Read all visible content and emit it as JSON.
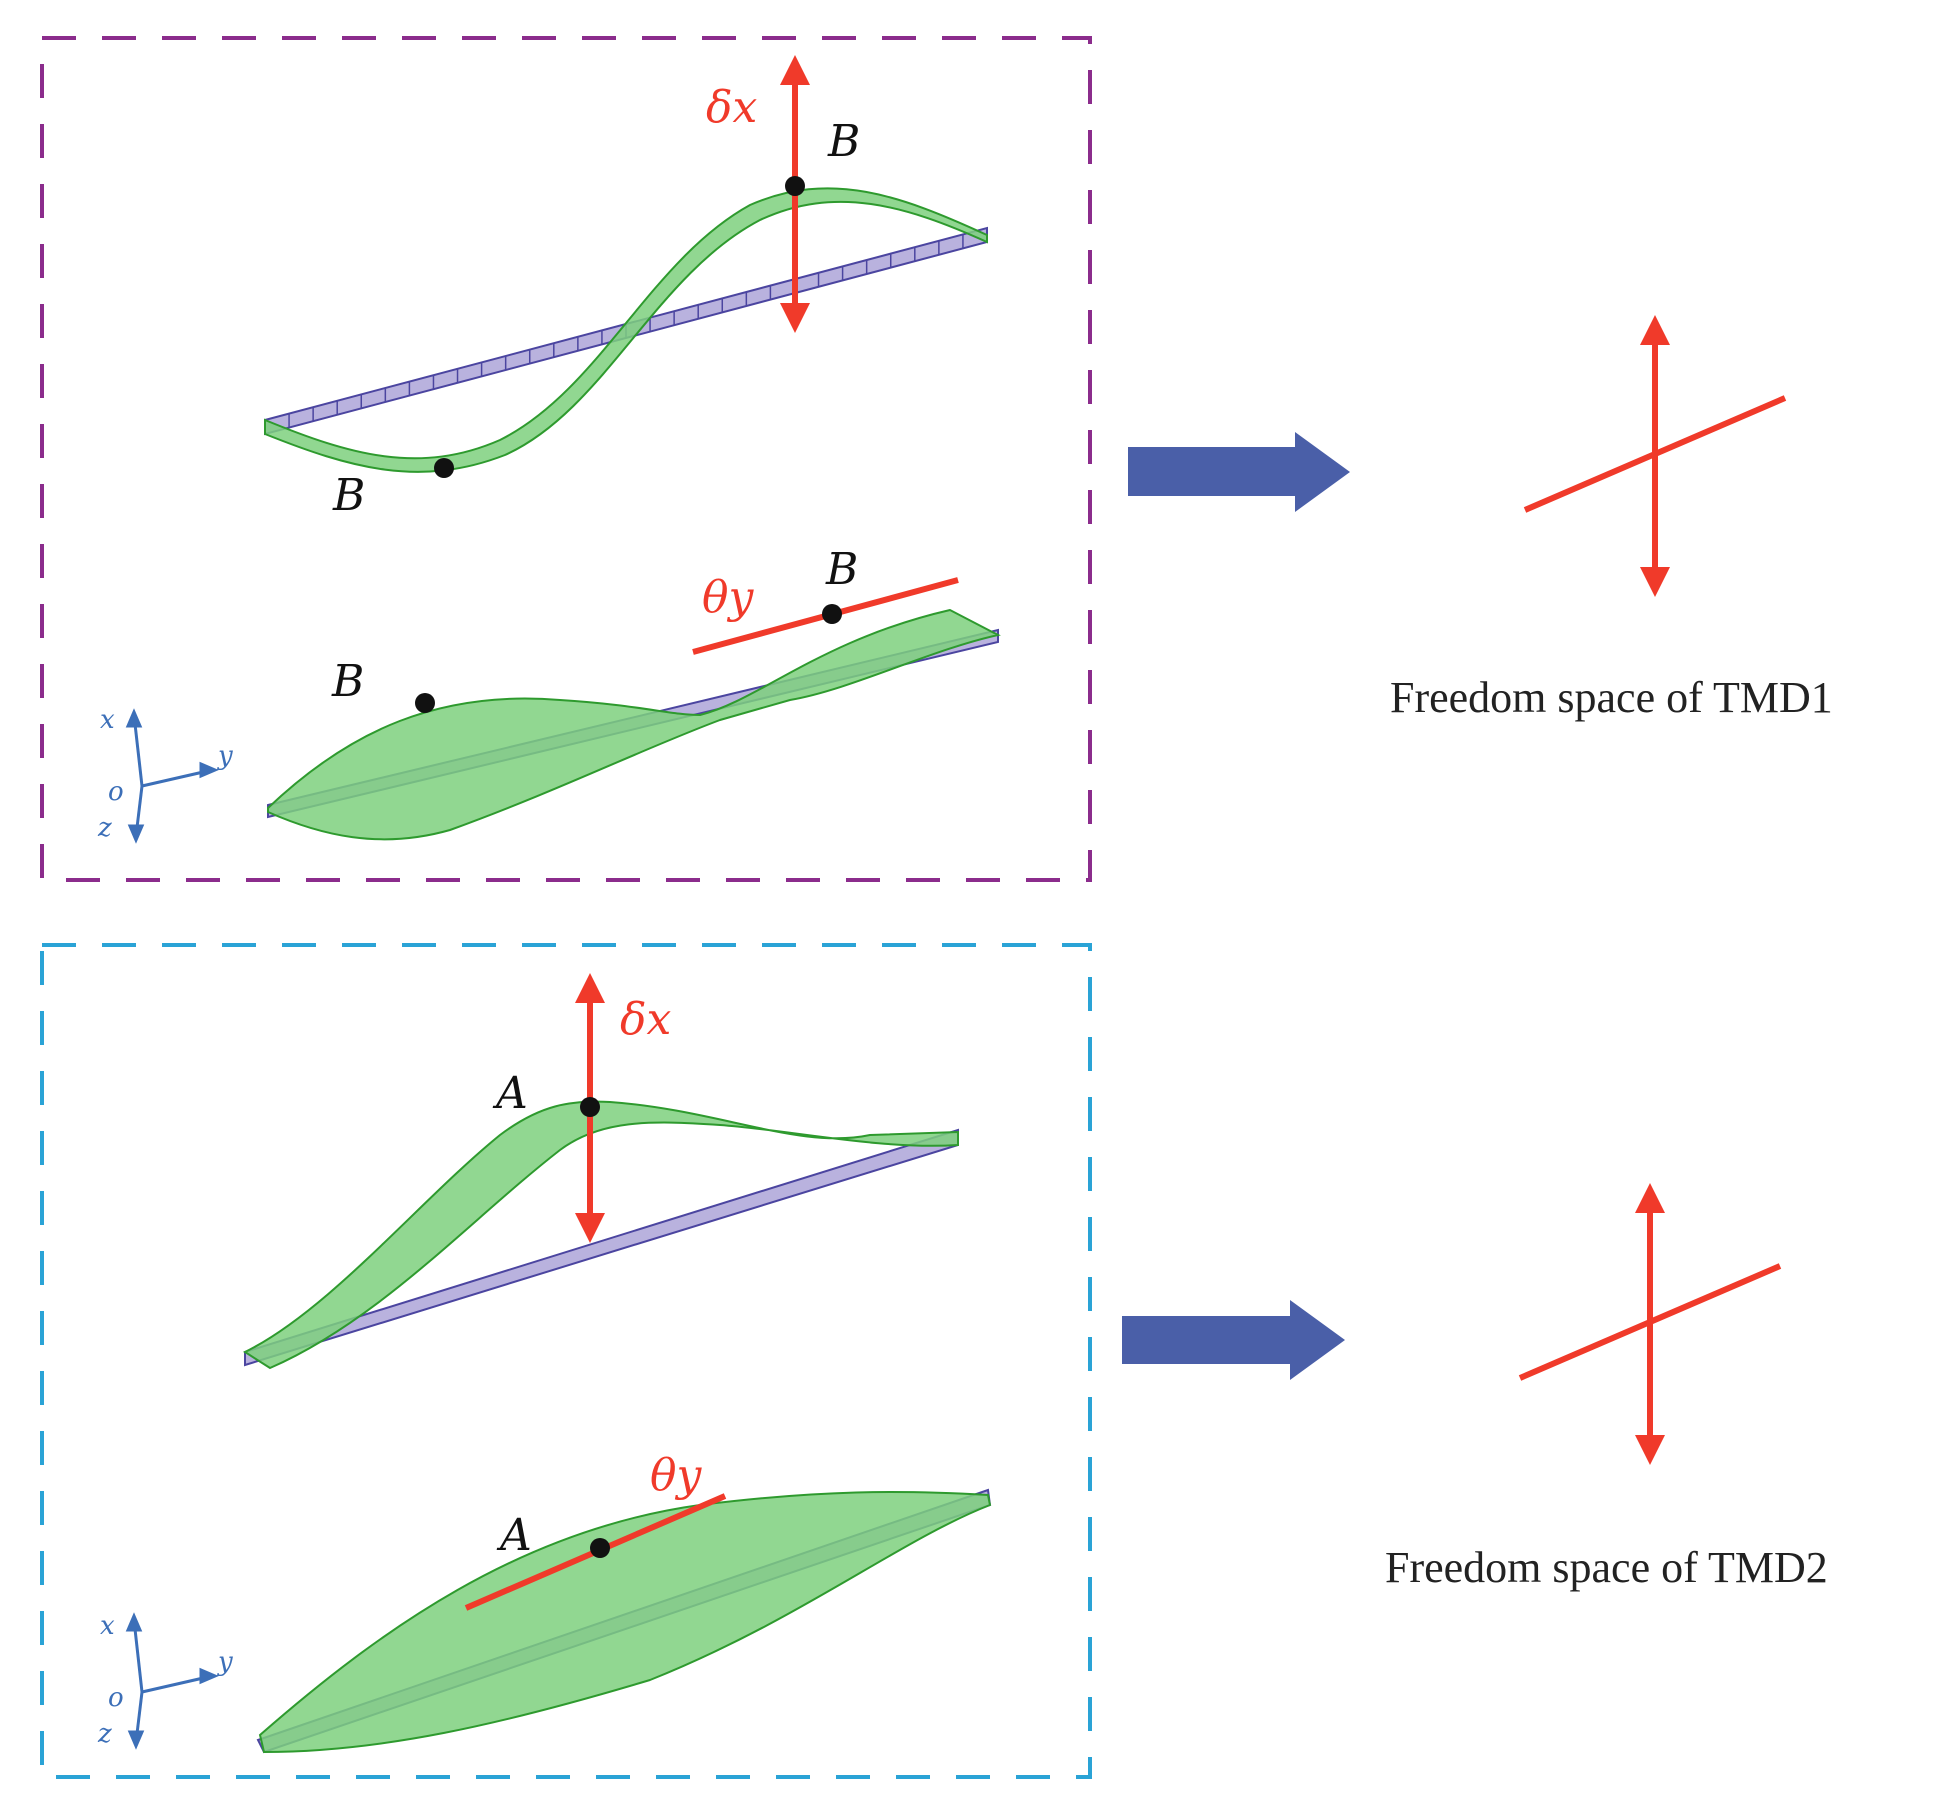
{
  "panel_top": {
    "mode1": {
      "motion_label": "δx",
      "point_labels": [
        "B",
        "B"
      ]
    },
    "mode2": {
      "rotation_label": "θy",
      "point_labels": [
        "B",
        "B"
      ]
    },
    "axes": {
      "x": "x",
      "y": "y",
      "z": "z",
      "origin": "o"
    },
    "caption": "Freedom space of TMD1",
    "frame_color": "#8B2C8C"
  },
  "panel_bottom": {
    "mode1": {
      "motion_label": "δx",
      "point_label": "A"
    },
    "mode2": {
      "rotation_label": "θy",
      "point_label": "A"
    },
    "axes": {
      "x": "x",
      "y": "y",
      "z": "z",
      "origin": "o"
    },
    "caption": "Freedom space of TMD2",
    "frame_color": "#2AA3D6"
  },
  "colors": {
    "deformed": "#7ED07E",
    "deformed_stroke": "#2E9A2E",
    "beam": "#B9B2DE",
    "beam_stroke": "#4B45A0",
    "motion": "#F03A2A",
    "arrow": "#4A5FA8",
    "axis": "#3C6FB8"
  },
  "icons": [
    "block-arrow-right-icon",
    "double-arrow-icon",
    "point-marker-icon"
  ]
}
